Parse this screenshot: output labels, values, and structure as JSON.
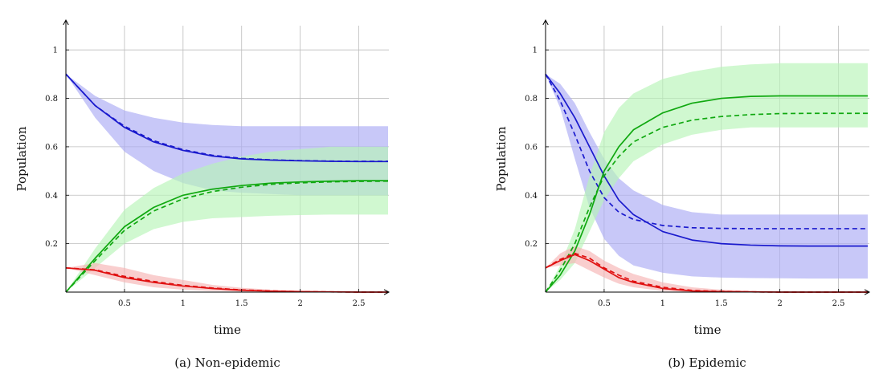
{
  "colors": {
    "susceptible": "#1a1acd",
    "infected": "#e01010",
    "recovered": "#10a810",
    "band_susceptible": "#aaaaf5",
    "band_infected": "#f6b3b3",
    "band_recovered": "#b7f5b7"
  },
  "chart_data": [
    {
      "type": "line",
      "caption": "(a) Non-epidemic",
      "xlabel": "time",
      "ylabel": "Population",
      "xlim": [
        0,
        2.75
      ],
      "ylim": [
        0,
        1.1
      ],
      "xticks": [
        0.5,
        1,
        1.5,
        2,
        2.5
      ],
      "xtick_labels": [
        "0.5",
        "1",
        "1.5",
        "2",
        "2.5"
      ],
      "yticks": [
        0.2,
        0.4,
        0.6,
        0.8,
        1
      ],
      "ytick_labels": [
        "0.2",
        "0.4",
        "0.6",
        "0.8",
        "1"
      ],
      "grid": true,
      "x": [
        0,
        0.25,
        0.5,
        0.75,
        1,
        1.25,
        1.5,
        1.75,
        2,
        2.25,
        2.5,
        2.75
      ],
      "series": [
        {
          "key": "susceptible",
          "style": "solid",
          "values": [
            0.9,
            0.77,
            0.68,
            0.62,
            0.585,
            0.562,
            0.55,
            0.545,
            0.542,
            0.54,
            0.539,
            0.539
          ]
        },
        {
          "key": "susceptible",
          "style": "dashed",
          "values": [
            0.9,
            0.77,
            0.685,
            0.625,
            0.588,
            0.565,
            0.552,
            0.546,
            0.543,
            0.541,
            0.54,
            0.54
          ]
        },
        {
          "key": "recovered",
          "style": "solid",
          "values": [
            0,
            0.14,
            0.27,
            0.35,
            0.4,
            0.425,
            0.44,
            0.45,
            0.455,
            0.458,
            0.46,
            0.46
          ]
        },
        {
          "key": "recovered",
          "style": "dashed",
          "values": [
            0,
            0.13,
            0.255,
            0.335,
            0.385,
            0.415,
            0.433,
            0.445,
            0.451,
            0.455,
            0.457,
            0.458
          ]
        },
        {
          "key": "infected",
          "style": "solid",
          "values": [
            0.1,
            0.09,
            0.06,
            0.04,
            0.025,
            0.015,
            0.008,
            0.004,
            0.002,
            0.001,
            0,
            0
          ]
        },
        {
          "key": "infected",
          "style": "dashed",
          "values": [
            0.1,
            0.092,
            0.065,
            0.044,
            0.028,
            0.017,
            0.009,
            0.005,
            0.002,
            0.001,
            0,
            0
          ]
        }
      ],
      "bands": [
        {
          "key": "band_susceptible",
          "low": [
            0.9,
            0.72,
            0.58,
            0.5,
            0.45,
            0.42,
            0.41,
            0.405,
            0.4,
            0.4,
            0.4,
            0.4
          ],
          "high": [
            0.9,
            0.81,
            0.75,
            0.72,
            0.7,
            0.69,
            0.685,
            0.685,
            0.685,
            0.685,
            0.685,
            0.685
          ]
        },
        {
          "key": "band_recovered",
          "low": [
            0,
            0.1,
            0.2,
            0.26,
            0.29,
            0.305,
            0.31,
            0.315,
            0.318,
            0.32,
            0.32,
            0.32
          ],
          "high": [
            0,
            0.18,
            0.34,
            0.43,
            0.49,
            0.53,
            0.56,
            0.58,
            0.59,
            0.6,
            0.6,
            0.6
          ]
        },
        {
          "key": "band_infected",
          "low": [
            0.1,
            0.07,
            0.04,
            0.02,
            0.01,
            0.005,
            0.002,
            0,
            0,
            0,
            0,
            0
          ],
          "high": [
            0.1,
            0.12,
            0.1,
            0.07,
            0.05,
            0.03,
            0.018,
            0.01,
            0.005,
            0.002,
            0.001,
            0.001
          ]
        }
      ]
    },
    {
      "type": "line",
      "caption": "(b) Epidemic",
      "xlabel": "time",
      "ylabel": "Population",
      "xlim": [
        0,
        2.75
      ],
      "ylim": [
        0,
        1.1
      ],
      "xticks": [
        0.5,
        1,
        1.5,
        2,
        2.5
      ],
      "xtick_labels": [
        "0.5",
        "1",
        "1.5",
        "2",
        "2.5"
      ],
      "yticks": [
        0.2,
        0.4,
        0.6,
        0.8,
        1
      ],
      "ytick_labels": [
        "0.2",
        "0.4",
        "0.6",
        "0.8",
        "1"
      ],
      "grid": true,
      "x": [
        0,
        0.125,
        0.25,
        0.375,
        0.5,
        0.625,
        0.75,
        1,
        1.25,
        1.5,
        1.75,
        2,
        2.25,
        2.5,
        2.75
      ],
      "series": [
        {
          "key": "susceptible",
          "style": "solid",
          "values": [
            0.9,
            0.82,
            0.72,
            0.6,
            0.48,
            0.38,
            0.32,
            0.25,
            0.215,
            0.2,
            0.194,
            0.191,
            0.19,
            0.19,
            0.19
          ]
        },
        {
          "key": "susceptible",
          "style": "dashed",
          "values": [
            0.9,
            0.79,
            0.65,
            0.5,
            0.39,
            0.33,
            0.3,
            0.275,
            0.266,
            0.263,
            0.262,
            0.262,
            0.262,
            0.262,
            0.262
          ]
        },
        {
          "key": "recovered",
          "style": "solid",
          "values": [
            0,
            0.07,
            0.17,
            0.32,
            0.5,
            0.6,
            0.67,
            0.74,
            0.78,
            0.8,
            0.808,
            0.81,
            0.81,
            0.81,
            0.81
          ]
        },
        {
          "key": "recovered",
          "style": "dashed",
          "values": [
            0,
            0.09,
            0.2,
            0.35,
            0.48,
            0.56,
            0.62,
            0.68,
            0.71,
            0.725,
            0.733,
            0.737,
            0.738,
            0.738,
            0.738
          ]
        },
        {
          "key": "infected",
          "style": "solid",
          "values": [
            0.1,
            0.13,
            0.155,
            0.13,
            0.095,
            0.06,
            0.04,
            0.015,
            0.005,
            0.002,
            0.001,
            0,
            0,
            0,
            0
          ]
        },
        {
          "key": "infected",
          "style": "dashed",
          "values": [
            0.1,
            0.135,
            0.16,
            0.14,
            0.1,
            0.07,
            0.045,
            0.02,
            0.007,
            0.003,
            0.001,
            0,
            0,
            0,
            0
          ]
        }
      ],
      "bands": [
        {
          "key": "band_susceptible",
          "low": [
            0.9,
            0.76,
            0.55,
            0.35,
            0.22,
            0.15,
            0.11,
            0.08,
            0.065,
            0.06,
            0.058,
            0.057,
            0.056,
            0.056,
            0.056
          ],
          "high": [
            0.9,
            0.86,
            0.78,
            0.66,
            0.55,
            0.47,
            0.42,
            0.36,
            0.33,
            0.32,
            0.32,
            0.32,
            0.32,
            0.32,
            0.32
          ]
        },
        {
          "key": "band_recovered",
          "low": [
            0,
            0.05,
            0.12,
            0.25,
            0.38,
            0.47,
            0.54,
            0.61,
            0.65,
            0.67,
            0.68,
            0.68,
            0.68,
            0.68,
            0.68
          ],
          "high": [
            0,
            0.11,
            0.26,
            0.48,
            0.66,
            0.76,
            0.82,
            0.88,
            0.91,
            0.93,
            0.94,
            0.945,
            0.945,
            0.945,
            0.945
          ]
        },
        {
          "key": "band_infected",
          "low": [
            0.1,
            0.11,
            0.12,
            0.09,
            0.06,
            0.035,
            0.02,
            0.005,
            0,
            0,
            0,
            0,
            0,
            0,
            0
          ],
          "high": [
            0.1,
            0.16,
            0.19,
            0.17,
            0.13,
            0.1,
            0.075,
            0.04,
            0.02,
            0.01,
            0.005,
            0.002,
            0.001,
            0.001,
            0.001
          ]
        }
      ]
    }
  ]
}
